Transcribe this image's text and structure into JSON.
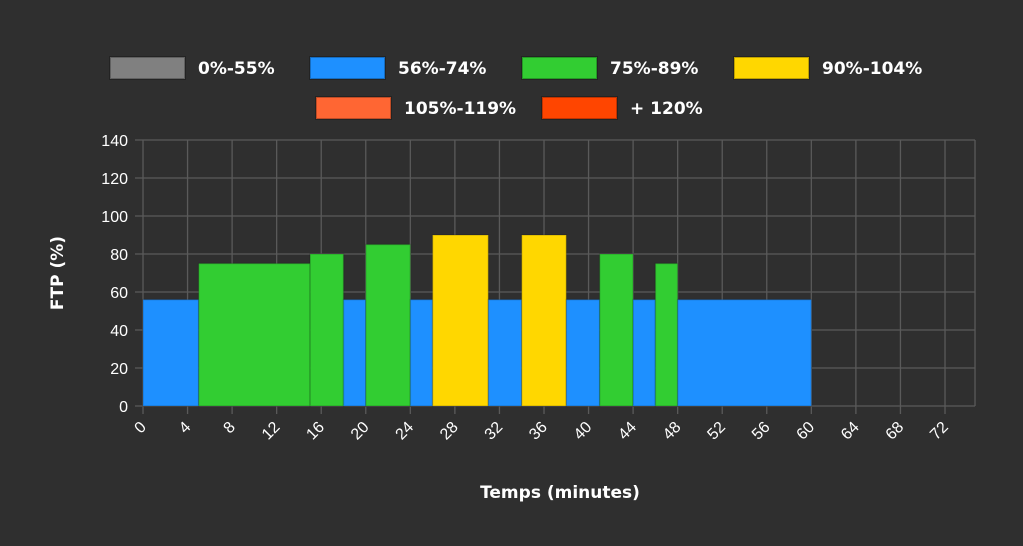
{
  "chart_data": {
    "type": "bar",
    "title": "",
    "xlabel": "Temps (minutes)",
    "ylabel": "FTP (%)",
    "xlim": [
      0,
      74
    ],
    "ylim": [
      0,
      140
    ],
    "xticks": [
      0,
      4,
      8,
      12,
      16,
      20,
      24,
      28,
      32,
      36,
      40,
      44,
      48,
      52,
      56,
      60,
      64,
      68,
      72
    ],
    "yticks": [
      0,
      20,
      40,
      60,
      80,
      100,
      120,
      140
    ],
    "grid": true,
    "legend_placement": "top",
    "legend": [
      {
        "label": "0%-55%",
        "color": "#808080"
      },
      {
        "label": "56%-74%",
        "color": "#1e90ff"
      },
      {
        "label": "75%-89%",
        "color": "#32cd32"
      },
      {
        "label": "90%-104%",
        "color": "#ffd700"
      },
      {
        "label": "105%-119%",
        "color": "#ff6633"
      },
      {
        "label": "+ 120%",
        "color": "#ff4500"
      }
    ],
    "segments": [
      {
        "start": 0,
        "end": 5,
        "ftp": 56,
        "zone": 1
      },
      {
        "start": 5,
        "end": 15,
        "ftp": 75,
        "zone": 2
      },
      {
        "start": 15,
        "end": 18,
        "ftp": 80,
        "zone": 2
      },
      {
        "start": 18,
        "end": 20,
        "ftp": 56,
        "zone": 1
      },
      {
        "start": 20,
        "end": 24,
        "ftp": 85,
        "zone": 2
      },
      {
        "start": 24,
        "end": 26,
        "ftp": 56,
        "zone": 1
      },
      {
        "start": 26,
        "end": 31,
        "ftp": 90,
        "zone": 3
      },
      {
        "start": 31,
        "end": 34,
        "ftp": 56,
        "zone": 1
      },
      {
        "start": 34,
        "end": 38,
        "ftp": 90,
        "zone": 3
      },
      {
        "start": 38,
        "end": 41,
        "ftp": 56,
        "zone": 1
      },
      {
        "start": 41,
        "end": 44,
        "ftp": 80,
        "zone": 2
      },
      {
        "start": 44,
        "end": 46,
        "ftp": 56,
        "zone": 1
      },
      {
        "start": 46,
        "end": 48,
        "ftp": 75,
        "zone": 2
      },
      {
        "start": 48,
        "end": 60,
        "ftp": 56,
        "zone": 1
      }
    ]
  }
}
